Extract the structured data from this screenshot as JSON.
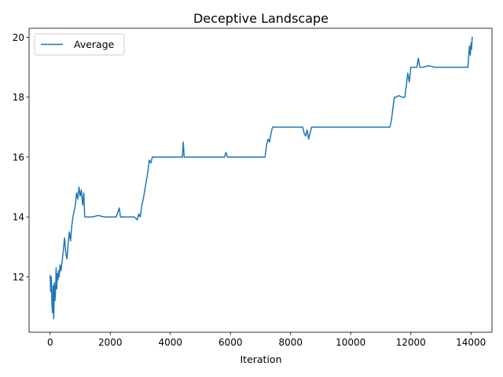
{
  "chart_data": {
    "type": "line",
    "title": "Deceptive Landscape",
    "xlabel": "Iteration",
    "ylabel": "",
    "xlim": [
      -700,
      14700
    ],
    "ylim": [
      10.15,
      20.3
    ],
    "xticks": [
      0,
      2000,
      4000,
      6000,
      8000,
      10000,
      12000,
      14000
    ],
    "yticks": [
      12,
      14,
      16,
      18,
      20
    ],
    "xtick_labels": [
      "0",
      "2000",
      "4000",
      "6000",
      "8000",
      "10000",
      "12000",
      "14000"
    ],
    "ytick_labels": [
      "12",
      "14",
      "16",
      "18",
      "20"
    ],
    "grid": false,
    "legend": {
      "position": "top-left"
    },
    "series": [
      {
        "name": "Average",
        "color": "#1f77b4",
        "x": [
          0,
          20,
          40,
          60,
          80,
          100,
          120,
          140,
          160,
          180,
          200,
          220,
          240,
          260,
          280,
          300,
          330,
          360,
          400,
          440,
          480,
          520,
          560,
          600,
          640,
          680,
          720,
          760,
          800,
          840,
          880,
          920,
          960,
          1000,
          1040,
          1080,
          1120,
          1150,
          1200,
          1400,
          1600,
          1800,
          2000,
          2200,
          2300,
          2340,
          2400,
          2600,
          2800,
          2900,
          2950,
          3000,
          3050,
          3100,
          3150,
          3200,
          3250,
          3300,
          3350,
          3400,
          3500,
          4000,
          4400,
          4430,
          4460,
          4500,
          5000,
          5500,
          5800,
          5850,
          5900,
          6000,
          6500,
          7000,
          7150,
          7200,
          7250,
          7300,
          7350,
          7400,
          7450,
          7500,
          8000,
          8400,
          8450,
          8500,
          8550,
          8600,
          8650,
          8700,
          9000,
          9500,
          10000,
          10500,
          11000,
          11300,
          11350,
          11400,
          11450,
          11500,
          11600,
          11700,
          11800,
          11850,
          11900,
          11950,
          12000,
          12100,
          12200,
          12250,
          12300,
          12400,
          12600,
          12800,
          13000,
          13500,
          13900,
          13950,
          13980,
          14000,
          14020,
          14040
        ],
        "values": [
          12.05,
          11.5,
          12.0,
          11.1,
          10.8,
          11.7,
          10.6,
          11.8,
          11.2,
          11.5,
          12.3,
          11.6,
          12.1,
          11.9,
          12.2,
          12.0,
          12.4,
          12.2,
          12.5,
          12.9,
          13.3,
          12.8,
          12.6,
          13.1,
          13.5,
          13.2,
          13.7,
          14.0,
          14.2,
          14.4,
          14.8,
          14.6,
          15.0,
          14.7,
          14.9,
          14.4,
          14.8,
          14.0,
          14.0,
          14.0,
          14.05,
          14.0,
          14.0,
          14.0,
          14.3,
          14.0,
          14.0,
          14.0,
          14.0,
          13.9,
          14.1,
          14.0,
          14.4,
          14.6,
          14.9,
          15.2,
          15.5,
          15.9,
          15.8,
          16.0,
          16.0,
          16.0,
          16.0,
          16.5,
          16.0,
          16.0,
          16.0,
          16.0,
          16.0,
          16.15,
          16.0,
          16.0,
          16.0,
          16.0,
          16.0,
          16.4,
          16.6,
          16.5,
          16.8,
          17.0,
          17.0,
          17.0,
          17.0,
          17.0,
          16.8,
          16.7,
          16.9,
          16.6,
          16.8,
          17.0,
          17.0,
          17.0,
          17.0,
          17.0,
          17.0,
          17.0,
          17.2,
          17.6,
          18.0,
          18.0,
          18.05,
          18.0,
          18.0,
          18.4,
          18.8,
          18.5,
          19.0,
          19.0,
          19.0,
          19.3,
          19.0,
          19.0,
          19.05,
          19.0,
          19.0,
          19.0,
          19.0,
          19.7,
          19.4,
          19.8,
          19.6,
          20.0
        ]
      }
    ]
  }
}
